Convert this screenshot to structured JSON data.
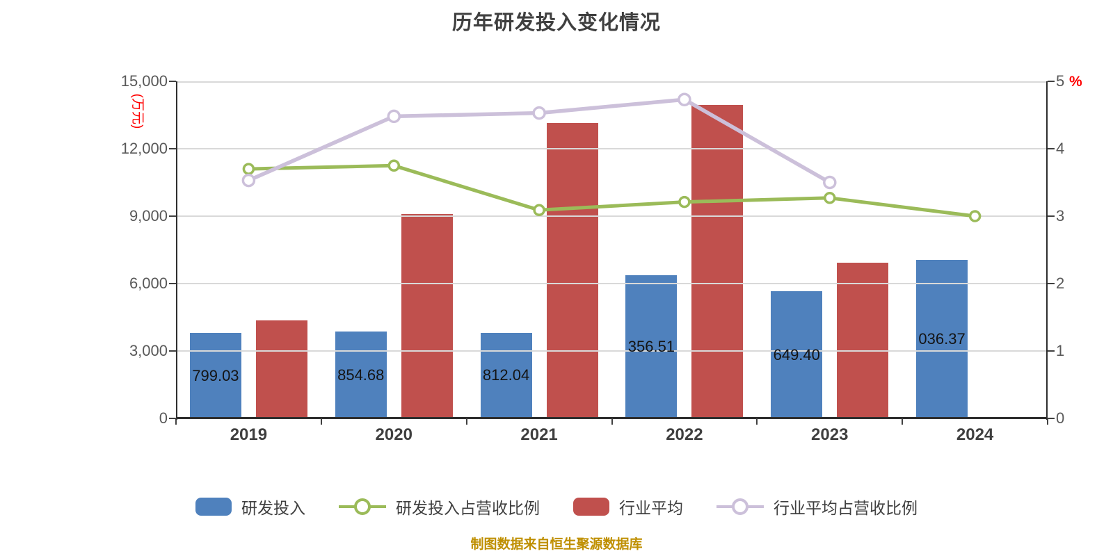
{
  "title": "历年研发投入变化情况",
  "caption": "制图数据来自恒生聚源数据库",
  "colors": {
    "bar_blue": "#4F81BD",
    "bar_red": "#C0504D",
    "line_green": "#9BBB59",
    "line_purple": "#CCC0DA",
    "gridline": "#D9D9D9",
    "axis_text": "#595959",
    "unit_text": "#FF0000",
    "caption_text": "#BF8F00"
  },
  "chart_data": {
    "type": "combo-bar-line",
    "categories": [
      "2019",
      "2020",
      "2021",
      "2022",
      "2023",
      "2024"
    ],
    "left_axis": {
      "unit": "(万元)",
      "range": [
        0,
        15000
      ],
      "ticks": [
        "0",
        "3,000",
        "6,000",
        "9,000",
        "12,000",
        "15,000"
      ]
    },
    "right_axis": {
      "unit": "%",
      "range": [
        0,
        5
      ],
      "ticks": [
        "0",
        "1",
        "2",
        "3",
        "4",
        "5"
      ]
    },
    "grid": true,
    "legend_position": "bottom",
    "series": [
      {
        "id": "rd-investment",
        "name": "研发投入",
        "type": "bar",
        "axis": "left",
        "color": "#4F81BD",
        "values": [
          3799.03,
          3854.68,
          3812.04,
          6356.51,
          5649.4,
          7036.37
        ],
        "visible_bar_labels": [
          "799.03",
          "854.68",
          "812.04",
          "356.51",
          "649.40",
          "036.37"
        ]
      },
      {
        "id": "industry-average",
        "name": "行业平均",
        "type": "bar",
        "axis": "left",
        "color": "#C0504D",
        "values": [
          4370,
          9100,
          13140,
          13950,
          6940,
          null
        ]
      },
      {
        "id": "rd-revenue-ratio",
        "name": "研发投入占营收比例",
        "type": "line",
        "axis": "right",
        "color": "#9BBB59",
        "marker_radius": 7,
        "stroke_width": 5,
        "values": [
          3.7,
          3.75,
          3.09,
          3.21,
          3.27,
          3.0
        ]
      },
      {
        "id": "industry-revenue-ratio",
        "name": "行业平均占营收比例",
        "type": "line",
        "axis": "right",
        "color": "#CCC0DA",
        "marker_radius": 8,
        "stroke_width": 5.5,
        "values": [
          3.53,
          4.48,
          4.53,
          4.73,
          3.5,
          null
        ]
      }
    ]
  },
  "legend": {
    "items": [
      {
        "label": "研发投入",
        "swatch": "bar",
        "color": "#4F81BD"
      },
      {
        "label": "研发投入占营收比例",
        "swatch": "line",
        "color": "#9BBB59"
      },
      {
        "label": "行业平均",
        "swatch": "bar",
        "color": "#C0504D"
      },
      {
        "label": "行业平均占营收比例",
        "swatch": "line",
        "color": "#CCC0DA"
      }
    ]
  }
}
